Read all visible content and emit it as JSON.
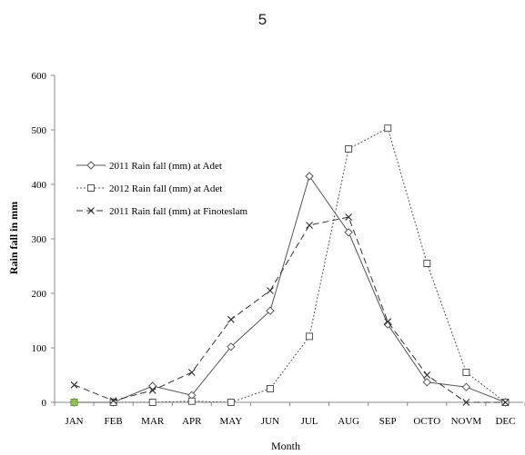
{
  "page": {
    "number": "5"
  },
  "chart_data": {
    "type": "line",
    "categories": [
      "JAN",
      "FEB",
      "MAR",
      "APR",
      "MAY",
      "JUN",
      "JUL",
      "AUG",
      "SEP",
      "OCTO",
      "NOVM",
      "DEC"
    ],
    "series": [
      {
        "name": "2011 Rain fall (mm) at Adet",
        "values": [
          0,
          0,
          30,
          13,
          102,
          168,
          415,
          312,
          143,
          37,
          28,
          0
        ],
        "marker": "diamond",
        "dash": "solid",
        "color": "#555555"
      },
      {
        "name": "2012 Rain fall (mm) at Adet",
        "values": [
          0,
          0,
          0,
          2,
          0,
          25,
          121,
          465,
          503,
          255,
          55,
          0
        ],
        "marker": "square",
        "dash": "dotted",
        "color": "#555555"
      },
      {
        "name": "2011 Rain fall (mm) at Finoteslam",
        "values": [
          32,
          3,
          22,
          55,
          152,
          205,
          325,
          340,
          148,
          50,
          0,
          0
        ],
        "marker": "x",
        "dash": "dashed",
        "color": "#333333"
      }
    ],
    "title": "",
    "xlabel": "Month",
    "ylabel": "Rain fall in mm",
    "ylim": [
      0,
      600
    ],
    "yticks": [
      0,
      100,
      200,
      300,
      400,
      500,
      600
    ],
    "grid": false,
    "legend": "upper-left",
    "highlight_color": "#8fc05a"
  }
}
